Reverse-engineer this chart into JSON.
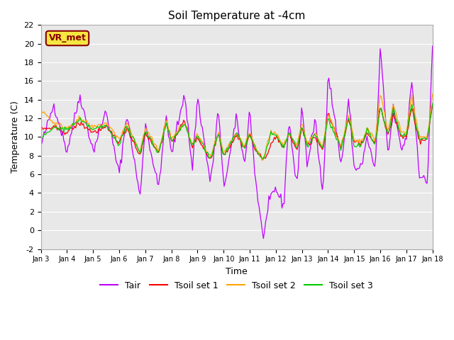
{
  "title": "Soil Temperature at -4cm",
  "xlabel": "Time",
  "ylabel": "Temperature (C)",
  "ylim": [
    -2,
    22
  ],
  "xlim": [
    0,
    360
  ],
  "bg_color": "#e8e8e8",
  "fig_color": "#ffffff",
  "annotation": "VR_met",
  "xtick_labels": [
    "Jan 3",
    "Jan 4",
    "Jan 5",
    "Jan 6",
    "Jan 7",
    "Jan 8",
    "Jan 9",
    "Jan 10",
    "Jan 11",
    "Jan 12",
    "Jan 13",
    "Jan 14",
    "Jan 15",
    "Jan 16",
    "Jan 17",
    "Jan 18"
  ],
  "tair_color": "#bf00ff",
  "tsoil1_color": "#ff0000",
  "tsoil2_color": "#ffa500",
  "tsoil3_color": "#00cc00",
  "legend_labels": [
    "Tair",
    "Tsoil set 1",
    "Tsoil set 2",
    "Tsoil set 3"
  ]
}
